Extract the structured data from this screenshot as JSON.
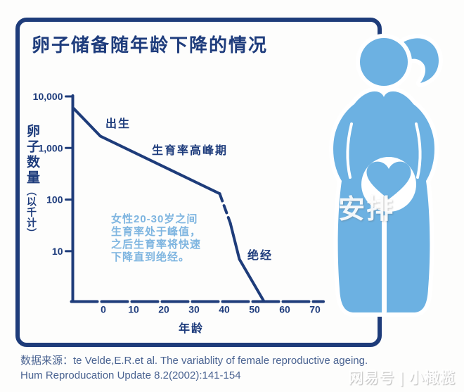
{
  "title": "卵子储备随年龄下降的情况",
  "watermarks": {
    "center": "安排",
    "bottom_right": "网易号 | 小橄榄"
  },
  "source": {
    "line1": "数据来源：te Velde,E.R.et al. The variablity of female reproductive ageing.",
    "line2": "Hum Reproducation Update 8.2(2002):141-154"
  },
  "colors": {
    "navy": "#1e3c7a",
    "navy_text": "#1e3c7c",
    "annotation_light_blue": "#7eb5e0",
    "figure_blue": "#6cb1e2",
    "source_text": "#4a6391",
    "background": "#fdfdfc"
  },
  "icons": {
    "figure": "pregnant-woman-icon",
    "heart": "heart-icon"
  },
  "chart_data": {
    "type": "line",
    "title": "卵子储备随年龄下降的情况",
    "xlabel": "年龄",
    "ylabel_main": "卵子数量",
    "ylabel_sub": "（以千计）",
    "y_scale": "log",
    "xlim": [
      -10,
      73
    ],
    "ylim": [
      1,
      10000
    ],
    "grid": false,
    "legend": "none",
    "x_ticks": [
      0,
      10,
      20,
      30,
      40,
      50,
      60,
      70
    ],
    "y_ticks": [
      {
        "value": 10000,
        "label": "10,000"
      },
      {
        "value": 1000,
        "label": "1,000"
      },
      {
        "value": 100,
        "label": "100"
      },
      {
        "value": 10,
        "label": "10"
      }
    ],
    "series": [
      {
        "name": "卵子数量（以千计）",
        "points": [
          {
            "age": -10,
            "value": 6000
          },
          {
            "age": -1,
            "value": 1700
          },
          {
            "age": 38.5,
            "value": 130
          },
          {
            "age": 42,
            "value": 35,
            "dash_from_prev": true
          },
          {
            "age": 45,
            "value": 7
          },
          {
            "age": 53,
            "value": 1.1
          }
        ]
      }
    ],
    "annotations": [
      {
        "id": "birth",
        "text": "出生"
      },
      {
        "id": "peak-fertility",
        "text": "生育率高峰期"
      },
      {
        "id": "menopause",
        "text": "绝经"
      },
      {
        "id": "paragraph",
        "text": "女性20-30岁之间\n生育率处于峰值，\n之后生育率将快速\n下降直到绝经。"
      }
    ]
  }
}
